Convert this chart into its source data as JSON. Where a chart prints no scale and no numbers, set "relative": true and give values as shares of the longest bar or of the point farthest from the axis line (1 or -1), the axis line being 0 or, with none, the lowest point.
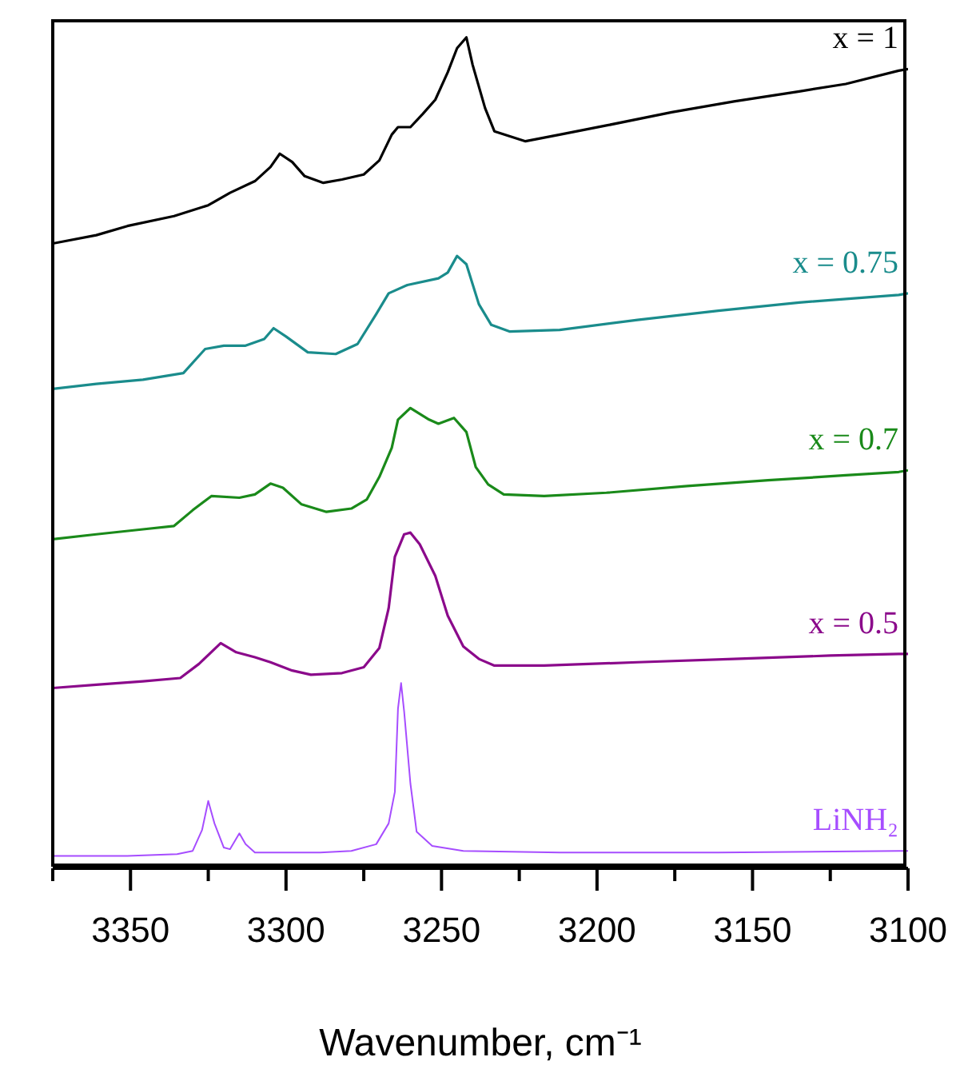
{
  "chart_data": {
    "type": "line",
    "relative": true,
    "xlabel": "Wavenumber, cm⁻¹",
    "xlim": [
      3375,
      3100
    ],
    "xticks": [
      {
        "value": 3375,
        "label": null
      },
      3350,
      {
        "value": 3325,
        "label": null
      },
      3300,
      {
        "value": 3275,
        "label": null
      },
      3250,
      {
        "value": 3225,
        "label": null
      },
      3200,
      {
        "value": 3175,
        "label": null
      },
      3150,
      {
        "value": 3125,
        "label": null
      },
      3100
    ],
    "series": [
      {
        "name": "x = 1",
        "color": "#000000",
        "x": [
          3375,
          3361,
          3351,
          3336,
          3325,
          3318,
          3310,
          3305,
          3302,
          3298,
          3294,
          3288,
          3282,
          3275,
          3270,
          3266,
          3264,
          3260,
          3256,
          3252,
          3248,
          3245,
          3242,
          3240,
          3236,
          3233,
          3223,
          3212,
          3197,
          3176,
          3156,
          3135,
          3120,
          3103,
          3100
        ],
        "values": [
          0.752,
          0.762,
          0.773,
          0.785,
          0.798,
          0.813,
          0.827,
          0.844,
          0.86,
          0.85,
          0.833,
          0.825,
          0.829,
          0.835,
          0.852,
          0.883,
          0.892,
          0.892,
          0.908,
          0.925,
          0.958,
          0.987,
          1,
          0.967,
          0.915,
          0.887,
          0.875,
          0.883,
          0.894,
          0.91,
          0.923,
          0.935,
          0.944,
          0.96,
          0.962
        ]
      },
      {
        "name": "x = 0.75",
        "color": "#1a8c8c",
        "x": [
          3375,
          3361,
          3346,
          3333,
          3326,
          3320,
          3313,
          3307,
          3304,
          3300,
          3293,
          3284,
          3277,
          3271,
          3267,
          3261,
          3251,
          3248,
          3245,
          3242,
          3238,
          3234,
          3228,
          3212,
          3187,
          3161,
          3135,
          3103,
          3100
        ],
        "values": [
          0.577,
          0.583,
          0.588,
          0.596,
          0.625,
          0.629,
          0.629,
          0.637,
          0.65,
          0.64,
          0.621,
          0.619,
          0.631,
          0.667,
          0.692,
          0.702,
          0.71,
          0.717,
          0.737,
          0.727,
          0.679,
          0.654,
          0.646,
          0.648,
          0.66,
          0.671,
          0.681,
          0.69,
          0.692
        ]
      },
      {
        "name": "x = 0.7",
        "color": "#1a8a1a",
        "x": [
          3375,
          3361,
          3346,
          3336,
          3330,
          3324,
          3315,
          3310,
          3305,
          3301,
          3295,
          3287,
          3279,
          3274,
          3270,
          3266,
          3264,
          3260,
          3254,
          3251,
          3246,
          3242,
          3239,
          3235,
          3230,
          3217,
          3197,
          3171,
          3145,
          3120,
          3103,
          3100
        ],
        "values": [
          0.396,
          0.402,
          0.408,
          0.412,
          0.431,
          0.448,
          0.446,
          0.45,
          0.463,
          0.458,
          0.438,
          0.429,
          0.433,
          0.444,
          0.471,
          0.506,
          0.54,
          0.554,
          0.54,
          0.535,
          0.542,
          0.525,
          0.483,
          0.462,
          0.45,
          0.448,
          0.452,
          0.46,
          0.467,
          0.473,
          0.477,
          0.479
        ]
      },
      {
        "name": "x = 0.5",
        "color": "#8b0a8b",
        "x": [
          3375,
          3361,
          3346,
          3334,
          3328,
          3321,
          3316,
          3310,
          3305,
          3298,
          3292,
          3282,
          3275,
          3270,
          3267,
          3265,
          3262,
          3260,
          3257,
          3252,
          3248,
          3243,
          3238,
          3233,
          3217,
          3187,
          3156,
          3125,
          3103,
          3100
        ],
        "values": [
          0.217,
          0.221,
          0.225,
          0.229,
          0.246,
          0.271,
          0.26,
          0.254,
          0.248,
          0.238,
          0.233,
          0.235,
          0.242,
          0.265,
          0.313,
          0.375,
          0.402,
          0.404,
          0.39,
          0.352,
          0.304,
          0.267,
          0.252,
          0.244,
          0.244,
          0.248,
          0.252,
          0.256,
          0.258,
          0.258
        ]
      },
      {
        "name": "LiNH₂",
        "color": "#a64dff",
        "x": [
          3375,
          3351,
          3335,
          3330,
          3327,
          3325,
          3323,
          3320,
          3318,
          3315,
          3313,
          3310,
          3289,
          3279,
          3271,
          3267,
          3265,
          3264,
          3263,
          3262,
          3260,
          3258,
          3253,
          3243,
          3212,
          3161,
          3103,
          3100
        ],
        "values": [
          0.015,
          0.015,
          0.017,
          0.021,
          0.046,
          0.081,
          0.054,
          0.025,
          0.023,
          0.042,
          0.029,
          0.019,
          0.019,
          0.021,
          0.029,
          0.054,
          0.092,
          0.192,
          0.223,
          0.188,
          0.102,
          0.044,
          0.027,
          0.021,
          0.019,
          0.019,
          0.021,
          0.021
        ]
      }
    ]
  }
}
